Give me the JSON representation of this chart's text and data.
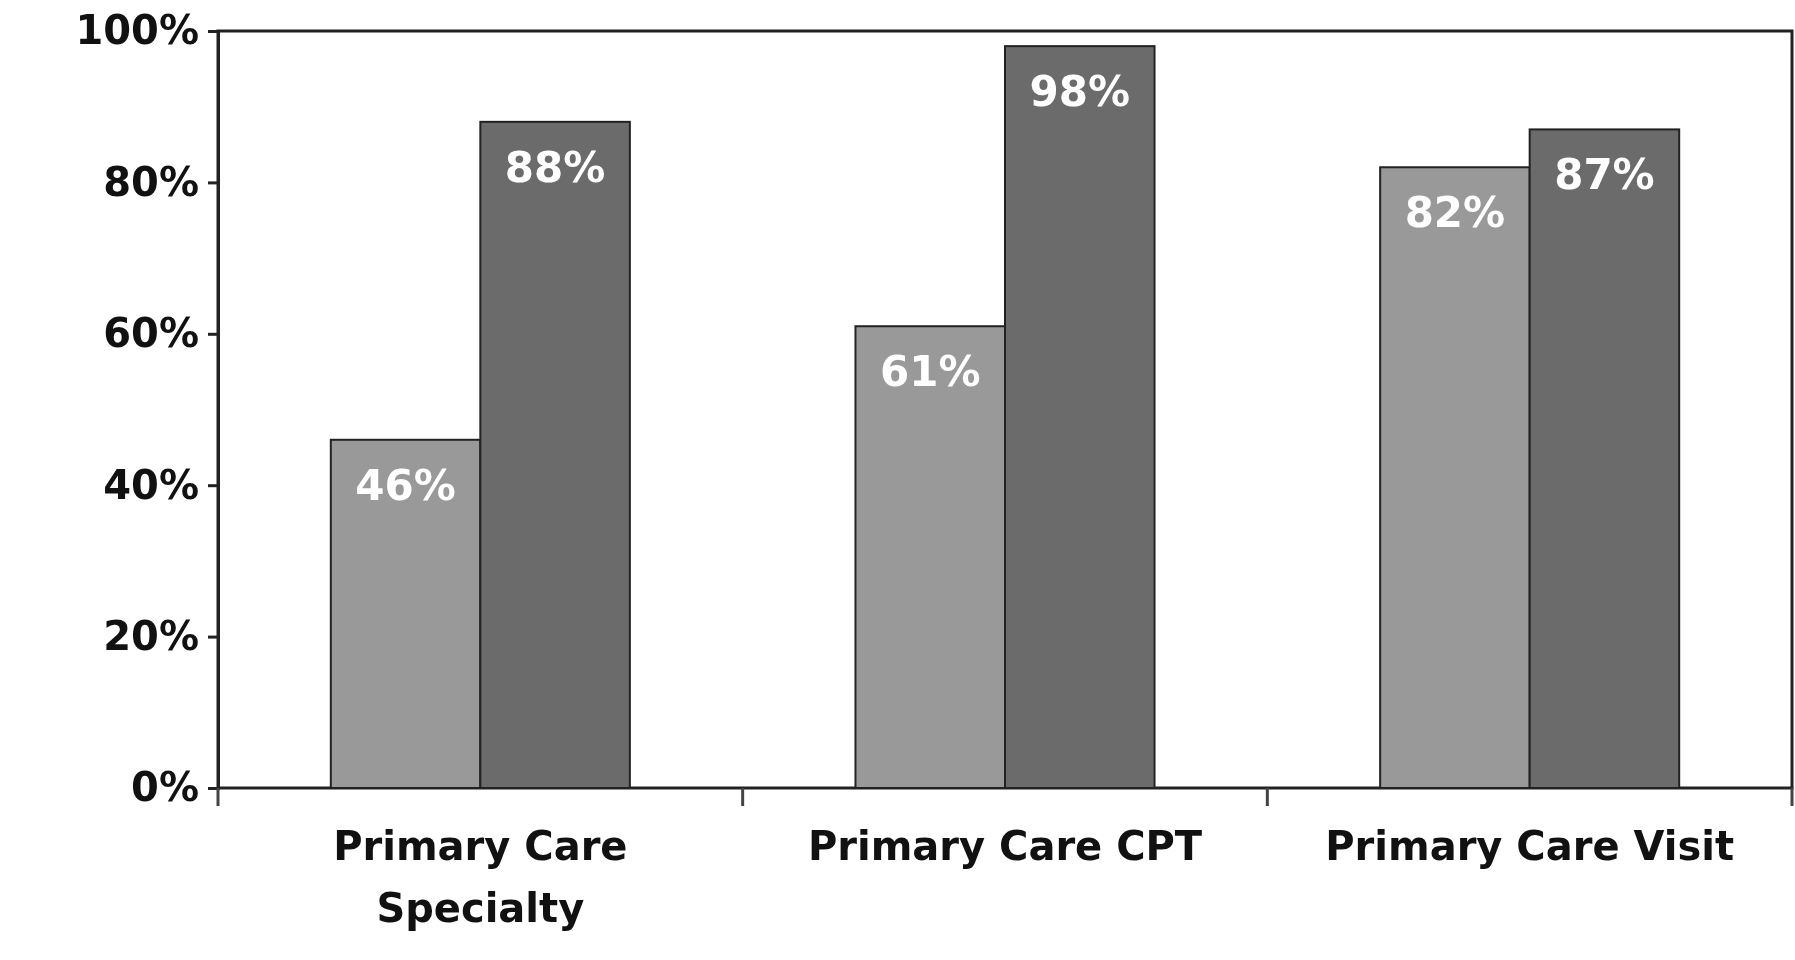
{
  "chart_data": {
    "type": "bar",
    "categories": [
      "Primary Care Specialty",
      "Primary Care CPT",
      "Primary Care Visit"
    ],
    "series": [
      {
        "color": "#999999",
        "values": [
          46,
          61,
          82
        ],
        "value_labels": [
          "46%",
          "61%",
          "82%"
        ]
      },
      {
        "color": "#6b6b6b",
        "values": [
          88,
          98,
          87
        ],
        "value_labels": [
          "88%",
          "98%",
          "87%"
        ]
      }
    ],
    "ylim": [
      0,
      100
    ],
    "yticks": [
      {
        "value": 0,
        "label": "0%"
      },
      {
        "value": 20,
        "label": "20%"
      },
      {
        "value": 40,
        "label": "40%"
      },
      {
        "value": 60,
        "label": "60%"
      },
      {
        "value": 80,
        "label": "80%"
      },
      {
        "value": 100,
        "label": "100%"
      }
    ],
    "grid": false
  }
}
